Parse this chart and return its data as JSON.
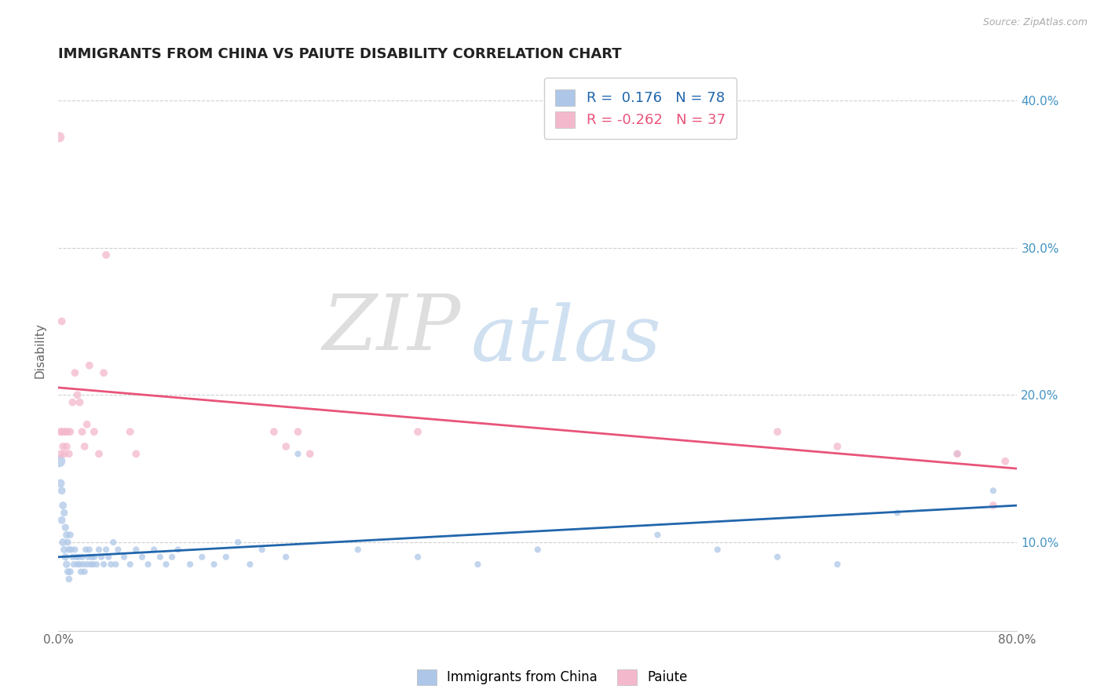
{
  "title": "IMMIGRANTS FROM CHINA VS PAIUTE DISABILITY CORRELATION CHART",
  "source_text": "Source: ZipAtlas.com",
  "ylabel": "Disability",
  "xlim": [
    0.0,
    0.8
  ],
  "ylim": [
    0.04,
    0.42
  ],
  "y_tick_positions": [
    0.1,
    0.2,
    0.3,
    0.4
  ],
  "y_tick_labels_right": [
    "10.0%",
    "20.0%",
    "30.0%",
    "40.0%"
  ],
  "r_china": 0.176,
  "n_china": 78,
  "r_paiute": -0.262,
  "n_paiute": 37,
  "china_color": "#aec7e8",
  "paiute_color": "#f4b8cc",
  "china_line_color": "#2166ac",
  "paiute_line_color": "#e8547a",
  "legend_label_china": "Immigrants from China",
  "legend_label_paiute": "Paiute",
  "watermark_zip": "ZIP",
  "watermark_atlas": "atlas",
  "background_color": "#ffffff",
  "grid_color": "#d0d0d0",
  "china_scatter_x": [
    0.001,
    0.002,
    0.003,
    0.003,
    0.004,
    0.004,
    0.005,
    0.005,
    0.006,
    0.006,
    0.007,
    0.007,
    0.008,
    0.008,
    0.009,
    0.009,
    0.01,
    0.01,
    0.011,
    0.012,
    0.013,
    0.014,
    0.015,
    0.016,
    0.017,
    0.018,
    0.019,
    0.02,
    0.021,
    0.022,
    0.023,
    0.024,
    0.025,
    0.026,
    0.027,
    0.028,
    0.029,
    0.03,
    0.032,
    0.034,
    0.036,
    0.038,
    0.04,
    0.042,
    0.044,
    0.046,
    0.048,
    0.05,
    0.055,
    0.06,
    0.065,
    0.07,
    0.075,
    0.08,
    0.085,
    0.09,
    0.095,
    0.1,
    0.11,
    0.12,
    0.13,
    0.14,
    0.15,
    0.16,
    0.17,
    0.19,
    0.2,
    0.25,
    0.3,
    0.35,
    0.4,
    0.5,
    0.55,
    0.6,
    0.65,
    0.7,
    0.75,
    0.78
  ],
  "china_scatter_y": [
    0.155,
    0.14,
    0.135,
    0.115,
    0.125,
    0.1,
    0.12,
    0.095,
    0.11,
    0.09,
    0.105,
    0.085,
    0.1,
    0.08,
    0.095,
    0.075,
    0.105,
    0.08,
    0.095,
    0.09,
    0.085,
    0.095,
    0.09,
    0.085,
    0.09,
    0.085,
    0.08,
    0.09,
    0.085,
    0.08,
    0.095,
    0.085,
    0.09,
    0.095,
    0.085,
    0.09,
    0.085,
    0.09,
    0.085,
    0.095,
    0.09,
    0.085,
    0.095,
    0.09,
    0.085,
    0.1,
    0.085,
    0.095,
    0.09,
    0.085,
    0.095,
    0.09,
    0.085,
    0.095,
    0.09,
    0.085,
    0.09,
    0.095,
    0.085,
    0.09,
    0.085,
    0.09,
    0.1,
    0.085,
    0.095,
    0.09,
    0.16,
    0.095,
    0.09,
    0.085,
    0.095,
    0.105,
    0.095,
    0.09,
    0.085,
    0.12,
    0.16,
    0.135
  ],
  "china_scatter_sizes": [
    120,
    60,
    50,
    50,
    50,
    50,
    45,
    45,
    45,
    45,
    45,
    45,
    40,
    40,
    40,
    40,
    40,
    40,
    35,
    35,
    35,
    35,
    35,
    35,
    35,
    35,
    35,
    35,
    35,
    35,
    35,
    35,
    35,
    35,
    35,
    35,
    35,
    35,
    35,
    35,
    35,
    35,
    35,
    35,
    35,
    35,
    35,
    35,
    35,
    35,
    35,
    35,
    35,
    35,
    35,
    35,
    35,
    35,
    35,
    35,
    35,
    35,
    35,
    35,
    35,
    35,
    35,
    35,
    35,
    35,
    35,
    35,
    35,
    35,
    35,
    35,
    35,
    35
  ],
  "paiute_scatter_x": [
    0.001,
    0.002,
    0.002,
    0.003,
    0.003,
    0.004,
    0.005,
    0.005,
    0.006,
    0.007,
    0.008,
    0.009,
    0.01,
    0.012,
    0.014,
    0.016,
    0.018,
    0.02,
    0.022,
    0.024,
    0.026,
    0.03,
    0.034,
    0.038,
    0.06,
    0.065,
    0.18,
    0.19,
    0.2,
    0.21,
    0.3,
    0.6,
    0.65,
    0.75,
    0.78,
    0.79,
    0.04
  ],
  "paiute_scatter_y": [
    0.375,
    0.175,
    0.16,
    0.25,
    0.175,
    0.165,
    0.175,
    0.16,
    0.175,
    0.165,
    0.175,
    0.16,
    0.175,
    0.195,
    0.215,
    0.2,
    0.195,
    0.175,
    0.165,
    0.18,
    0.22,
    0.175,
    0.16,
    0.215,
    0.175,
    0.16,
    0.175,
    0.165,
    0.175,
    0.16,
    0.175,
    0.175,
    0.165,
    0.16,
    0.125,
    0.155,
    0.295
  ],
  "paiute_scatter_sizes": [
    90,
    50,
    50,
    50,
    50,
    50,
    50,
    50,
    50,
    50,
    50,
    50,
    50,
    50,
    50,
    50,
    50,
    50,
    50,
    50,
    50,
    50,
    50,
    50,
    50,
    50,
    50,
    50,
    50,
    50,
    50,
    50,
    50,
    50,
    50,
    50,
    50
  ],
  "title_color": "#222222",
  "axis_label_color": "#666666",
  "tick_color": "#666666",
  "right_tick_color": "#4393c3"
}
